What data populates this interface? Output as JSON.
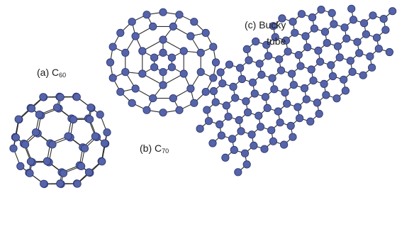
{
  "labels": {
    "c60": {
      "prefix": "(a) C",
      "sub": "60"
    },
    "c70": {
      "prefix": "(b) C",
      "sub": "70"
    },
    "tube": {
      "line1": "(c) Bucky",
      "line2": "tube"
    }
  },
  "colors": {
    "atom_fill": "#5563a8",
    "atom_stroke": "#2a3370",
    "bond": "#2b2b2b"
  }
}
